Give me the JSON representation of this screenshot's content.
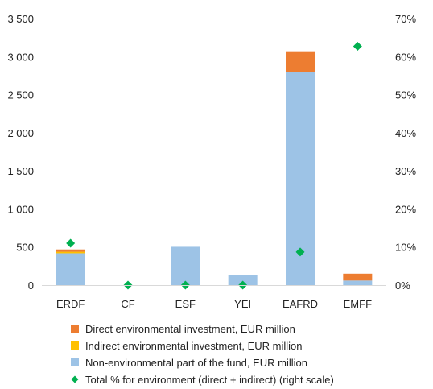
{
  "chart_data": {
    "type": "bar",
    "stacked": true,
    "categories": [
      "ERDF",
      "CF",
      "ESF",
      "YEI",
      "EAFRD",
      "EMFF"
    ],
    "series": [
      {
        "name": "Non-environmental part of the fund, EUR million",
        "values": [
          418,
          0,
          503,
          137,
          2800,
          60
        ],
        "color": "#9DC3E6",
        "axis": "left"
      },
      {
        "name": "Indirect environmental investment, EUR million",
        "values": [
          20,
          0,
          0,
          0,
          0,
          0
        ],
        "color": "#FFC000",
        "axis": "left"
      },
      {
        "name": "Direct environmental investment, EUR million",
        "values": [
          30,
          0,
          0,
          0,
          270,
          90
        ],
        "color": "#ED7D31",
        "axis": "left"
      },
      {
        "name": "Total % for environment (direct + indirect) (right scale)",
        "values": [
          11,
          0,
          0,
          0,
          8.7,
          62.7
        ],
        "color": "#00B050",
        "axis": "right",
        "marker": "diamond"
      }
    ],
    "y_left": {
      "min": 0,
      "max": 3500,
      "ticks": [
        0,
        500,
        1000,
        1500,
        2000,
        2500,
        3000,
        3500
      ],
      "tick_labels": [
        "0",
        "500",
        "1 000",
        "1 500",
        "2 000",
        "2 500",
        "3 000",
        "3 500"
      ]
    },
    "y_right": {
      "min": 0,
      "max": 70,
      "ticks": [
        0,
        10,
        20,
        30,
        40,
        50,
        60,
        70
      ],
      "tick_labels": [
        "0%",
        "10%",
        "20%",
        "30%",
        "40%",
        "50%",
        "60%",
        "70%"
      ]
    },
    "legend": {
      "placement": "bottom",
      "items": [
        "Direct environmental investment, EUR million",
        "Indirect environmental investment, EUR million",
        "Non-environmental part of the fund, EUR million",
        "Total % for environment (direct + indirect) (right scale)"
      ],
      "colors": [
        "#ED7D31",
        "#FFC000",
        "#9DC3E6",
        "#00B050"
      ],
      "markers": [
        "square",
        "square",
        "square",
        "diamond"
      ]
    },
    "grid": false,
    "title": "",
    "xlabel": "",
    "ylabel": ""
  }
}
